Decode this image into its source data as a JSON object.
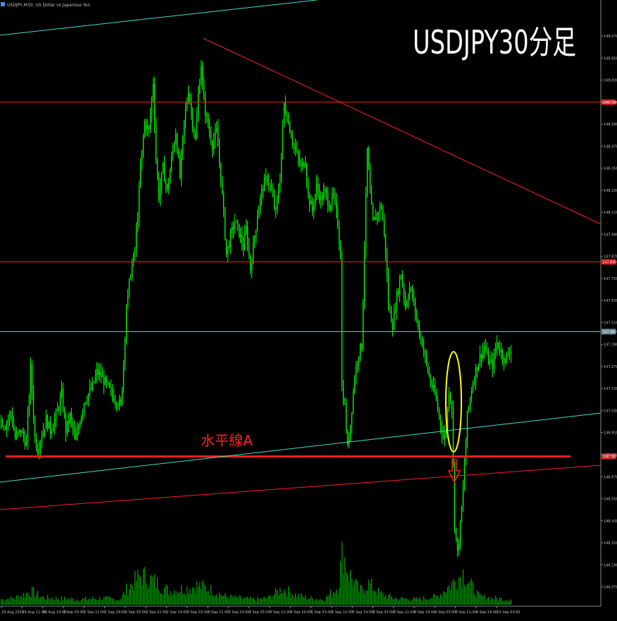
{
  "header": {
    "symbol_info": "USDJPY,M30: US Dollar vs Japanese Yen",
    "big_title": "USDJPY30分足"
  },
  "colors": {
    "background": "#000000",
    "candle": "#00ff00",
    "volume": "#00ff00",
    "resistance_line": "#ff1f1f",
    "channel_line": "#40e0d0",
    "price_line": "#8fb8c8",
    "ellipse": "#ffff00",
    "arrow": "#ff2020",
    "axis_text": "#c0c0c0",
    "title_text": "#ffffff"
  },
  "chart_data": {
    "type": "candlestick",
    "title": "USDJPY30分足",
    "ylim": [
      145.98,
      149.22
    ],
    "y_ticks": [
      "149.070",
      "148.950",
      "148.830",
      "148.710",
      "148.590",
      "148.470",
      "148.350",
      "148.230",
      "148.110",
      "147.990",
      "147.870",
      "147.750",
      "147.630",
      "147.510",
      "147.390",
      "147.270",
      "147.150",
      "147.030",
      "146.910",
      "146.790",
      "146.670",
      "146.550",
      "146.430",
      "146.310",
      "146.190",
      "146.070"
    ],
    "x_ticks": [
      "29 Aug 2025",
      "29 Aug 11:00",
      "29 Aug 19:00",
      "1 Sep 03:00",
      "1 Sep 11:00",
      "1 Sep 19:00",
      "2 Sep 03:00",
      "2 Sep 11:00",
      "2 Sep 19:00",
      "3 Sep 03:00",
      "3 Sep 11:00",
      "3 Sep 19:00",
      "4 Sep 03:00",
      "4 Sep 11:00",
      "4 Sep 19:00",
      "5 Sep 03:00",
      "5 Sep 11:00",
      "5 Sep 19:00",
      "8 Sep 03:00",
      "8 Sep 11:00",
      "8 Sep 19:00",
      "9 Sep 03:00",
      "9 Sep 11:00",
      "9 Sep 19:00",
      "10 Sep 03:00"
    ],
    "price_path": [
      [
        0,
        146.98
      ],
      [
        8,
        146.95
      ],
      [
        16,
        147.02
      ],
      [
        22,
        146.88
      ],
      [
        30,
        146.92
      ],
      [
        38,
        146.85
      ],
      [
        44,
        147.26
      ],
      [
        50,
        146.88
      ],
      [
        54,
        146.82
      ],
      [
        60,
        146.9
      ],
      [
        66,
        146.98
      ],
      [
        72,
        146.92
      ],
      [
        80,
        147.0
      ],
      [
        88,
        147.12
      ],
      [
        94,
        146.92
      ],
      [
        100,
        147.0
      ],
      [
        108,
        146.86
      ],
      [
        114,
        146.98
      ],
      [
        120,
        147.08
      ],
      [
        126,
        147.12
      ],
      [
        132,
        147.16
      ],
      [
        138,
        147.24
      ],
      [
        144,
        147.22
      ],
      [
        150,
        147.18
      ],
      [
        156,
        147.14
      ],
      [
        162,
        147.1
      ],
      [
        168,
        147.08
      ],
      [
        172,
        147.05
      ],
      [
        176,
        147.3
      ],
      [
        180,
        147.6
      ],
      [
        186,
        147.78
      ],
      [
        192,
        147.9
      ],
      [
        196,
        148.1
      ],
      [
        200,
        148.35
      ],
      [
        206,
        148.6
      ],
      [
        212,
        148.55
      ],
      [
        218,
        148.82
      ],
      [
        222,
        148.4
      ],
      [
        226,
        148.2
      ],
      [
        232,
        148.35
      ],
      [
        238,
        148.22
      ],
      [
        244,
        148.4
      ],
      [
        250,
        148.55
      ],
      [
        256,
        148.3
      ],
      [
        262,
        148.6
      ],
      [
        268,
        148.78
      ],
      [
        274,
        148.6
      ],
      [
        278,
        148.5
      ],
      [
        282,
        148.75
      ],
      [
        286,
        148.92
      ],
      [
        290,
        148.7
      ],
      [
        296,
        148.58
      ],
      [
        302,
        148.48
      ],
      [
        308,
        148.55
      ],
      [
        314,
        148.3
      ],
      [
        318,
        148.1
      ],
      [
        322,
        147.88
      ],
      [
        328,
        147.98
      ],
      [
        334,
        148.06
      ],
      [
        340,
        148.0
      ],
      [
        346,
        147.92
      ],
      [
        350,
        148.02
      ],
      [
        356,
        147.8
      ],
      [
        362,
        147.98
      ],
      [
        368,
        148.15
      ],
      [
        374,
        148.25
      ],
      [
        380,
        148.3
      ],
      [
        386,
        148.22
      ],
      [
        392,
        148.1
      ],
      [
        398,
        148.3
      ],
      [
        404,
        148.7
      ],
      [
        410,
        148.6
      ],
      [
        416,
        148.5
      ],
      [
        422,
        148.42
      ],
      [
        428,
        148.35
      ],
      [
        434,
        148.4
      ],
      [
        438,
        148.2
      ],
      [
        444,
        148.12
      ],
      [
        450,
        148.25
      ],
      [
        456,
        148.18
      ],
      [
        462,
        148.22
      ],
      [
        468,
        148.15
      ],
      [
        474,
        148.2
      ],
      [
        480,
        148.05
      ],
      [
        484,
        147.88
      ],
      [
        486,
        147.15
      ],
      [
        490,
        147.05
      ],
      [
        494,
        146.82
      ],
      [
        498,
        146.96
      ],
      [
        504,
        147.22
      ],
      [
        510,
        147.35
      ],
      [
        514,
        147.38
      ],
      [
        518,
        147.92
      ],
      [
        522,
        148.45
      ],
      [
        526,
        148.2
      ],
      [
        530,
        148.05
      ],
      [
        536,
        148.1
      ],
      [
        542,
        148.15
      ],
      [
        548,
        147.9
      ],
      [
        552,
        147.6
      ],
      [
        558,
        147.5
      ],
      [
        564,
        147.65
      ],
      [
        570,
        147.78
      ],
      [
        576,
        147.6
      ],
      [
        582,
        147.7
      ],
      [
        588,
        147.62
      ],
      [
        594,
        147.48
      ],
      [
        600,
        147.4
      ],
      [
        606,
        147.28
      ],
      [
        612,
        147.18
      ],
      [
        618,
        147.12
      ],
      [
        624,
        147.0
      ],
      [
        630,
        146.88
      ],
      [
        634,
        146.92
      ],
      [
        638,
        147.15
      ],
      [
        642,
        147.05
      ],
      [
        646,
        146.42
      ],
      [
        650,
        146.25
      ],
      [
        654,
        146.4
      ],
      [
        658,
        146.6
      ],
      [
        664,
        147.0
      ],
      [
        670,
        147.15
      ],
      [
        676,
        147.25
      ],
      [
        682,
        147.32
      ],
      [
        688,
        147.38
      ],
      [
        694,
        147.3
      ],
      [
        700,
        147.28
      ],
      [
        706,
        147.4
      ],
      [
        712,
        147.35
      ],
      [
        718,
        147.3
      ],
      [
        724,
        147.36
      ]
    ],
    "volume_path": [
      [
        0,
        0.1
      ],
      [
        20,
        0.12
      ],
      [
        44,
        0.25
      ],
      [
        60,
        0.14
      ],
      [
        80,
        0.12
      ],
      [
        110,
        0.1
      ],
      [
        140,
        0.12
      ],
      [
        170,
        0.1
      ],
      [
        180,
        0.3
      ],
      [
        200,
        0.55
      ],
      [
        220,
        0.42
      ],
      [
        240,
        0.25
      ],
      [
        260,
        0.3
      ],
      [
        280,
        0.35
      ],
      [
        300,
        0.28
      ],
      [
        320,
        0.15
      ],
      [
        340,
        0.12
      ],
      [
        360,
        0.1
      ],
      [
        380,
        0.12
      ],
      [
        400,
        0.3
      ],
      [
        420,
        0.18
      ],
      [
        440,
        0.12
      ],
      [
        460,
        0.1
      ],
      [
        480,
        0.35
      ],
      [
        486,
        1.0
      ],
      [
        494,
        0.6
      ],
      [
        510,
        0.25
      ],
      [
        522,
        0.4
      ],
      [
        540,
        0.2
      ],
      [
        560,
        0.12
      ],
      [
        590,
        0.1
      ],
      [
        620,
        0.15
      ],
      [
        646,
        0.45
      ],
      [
        658,
        0.6
      ],
      [
        666,
        0.4
      ],
      [
        680,
        0.15
      ],
      [
        700,
        0.12
      ],
      [
        724,
        0.1
      ]
    ],
    "horizontal_lines": [
      {
        "price": 148.71,
        "tag": "148.714"
      },
      {
        "price": 147.84,
        "tag": "147.840"
      },
      {
        "price": 147.46,
        "tag": "147.460"
      },
      {
        "price": 146.78,
        "tag": "146.780"
      }
    ],
    "annotations": {
      "horizontal_line_label": "水平線A"
    }
  }
}
